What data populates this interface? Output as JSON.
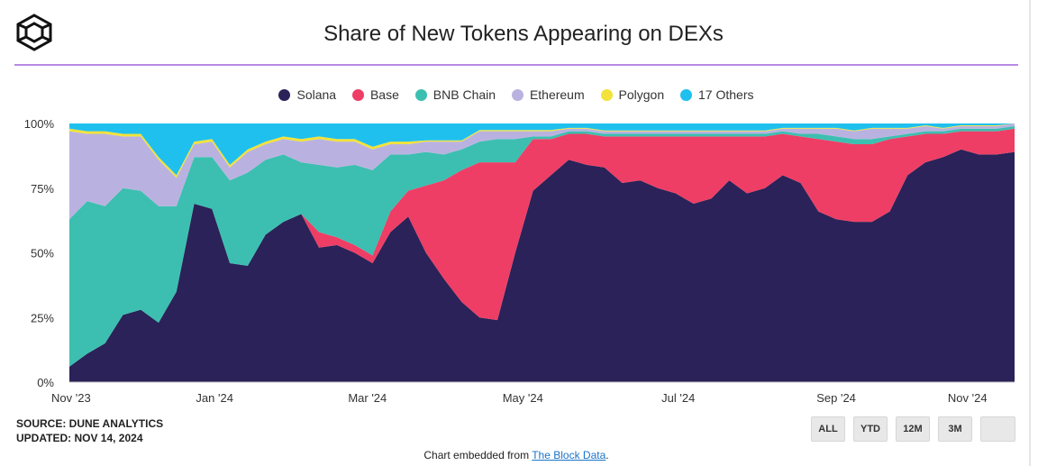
{
  "header": {
    "title": "Share of New Tokens Appearing on DEXs"
  },
  "legend": [
    {
      "label": "Solana",
      "color": "#2a2258"
    },
    {
      "label": "Base",
      "color": "#ee3e65"
    },
    {
      "label": "BNB Chain",
      "color": "#3cbfb0"
    },
    {
      "label": "Ethereum",
      "color": "#b9b2e0"
    },
    {
      "label": "Polygon",
      "color": "#f2e23a"
    },
    {
      "label": "17 Others",
      "color": "#1fc0ee"
    }
  ],
  "footer": {
    "source": "SOURCE: DUNE ANALYTICS",
    "updated": "UPDATED: NOV 14, 2024",
    "embed_prefix": "Chart embedded from ",
    "embed_link": "The Block Data",
    "embed_suffix": "."
  },
  "range_buttons": [
    "ALL",
    "YTD",
    "12M",
    "3M",
    ""
  ],
  "chart_data": {
    "type": "area",
    "stacked": true,
    "y_unit": "%",
    "ylim": [
      0,
      100
    ],
    "y_ticks": [
      "0%",
      "25%",
      "50%",
      "75%",
      "100%"
    ],
    "x_ticks": [
      "Nov '23",
      "Jan '24",
      "Mar '24",
      "May '24",
      "Jul '24",
      "Sep '24",
      "Nov '24"
    ],
    "x": [
      "2023-11-05",
      "2023-11-12",
      "2023-11-19",
      "2023-11-26",
      "2023-12-03",
      "2023-12-10",
      "2023-12-17",
      "2023-12-24",
      "2023-12-31",
      "2024-01-07",
      "2024-01-14",
      "2024-01-21",
      "2024-01-28",
      "2024-02-04",
      "2024-02-11",
      "2024-02-18",
      "2024-02-25",
      "2024-03-03",
      "2024-03-10",
      "2024-03-17",
      "2024-03-24",
      "2024-03-31",
      "2024-04-07",
      "2024-04-14",
      "2024-04-21",
      "2024-04-28",
      "2024-05-05",
      "2024-05-12",
      "2024-05-19",
      "2024-05-26",
      "2024-06-02",
      "2024-06-09",
      "2024-06-16",
      "2024-06-23",
      "2024-06-30",
      "2024-07-07",
      "2024-07-14",
      "2024-07-21",
      "2024-07-28",
      "2024-08-04",
      "2024-08-11",
      "2024-08-18",
      "2024-08-25",
      "2024-09-01",
      "2024-09-08",
      "2024-09-15",
      "2024-09-22",
      "2024-09-29",
      "2024-10-06",
      "2024-10-13",
      "2024-10-20",
      "2024-10-27",
      "2024-11-03",
      "2024-11-10"
    ],
    "series": [
      {
        "name": "Solana",
        "values": [
          6,
          11,
          15,
          26,
          28,
          23,
          35,
          69,
          67,
          46,
          45,
          57,
          62,
          65,
          52,
          53,
          50,
          46,
          58,
          64,
          50,
          40,
          31,
          25,
          24,
          50,
          74,
          80,
          86,
          84,
          83,
          77,
          78,
          75,
          73,
          69,
          71,
          78,
          73,
          75,
          80,
          77,
          66,
          63,
          62,
          62,
          66,
          80,
          85,
          87,
          90,
          88,
          88,
          89
        ]
      },
      {
        "name": "Base",
        "values": [
          0,
          0,
          0,
          0,
          0,
          0,
          0,
          0,
          0,
          0,
          0,
          0,
          0,
          0,
          6,
          3,
          3,
          3,
          8,
          10,
          26,
          38,
          51,
          60,
          61,
          35,
          20,
          14,
          10,
          12,
          12,
          18,
          17,
          20,
          22,
          26,
          24,
          17,
          22,
          20,
          16,
          18,
          28,
          30,
          30,
          30,
          28,
          15,
          11,
          9,
          7,
          9,
          9,
          9
        ]
      },
      {
        "name": "BNB Chain",
        "values": [
          57,
          59,
          53,
          49,
          46,
          45,
          33,
          18,
          20,
          32,
          36,
          29,
          26,
          20,
          26,
          27,
          31,
          33,
          22,
          14,
          13,
          10,
          8,
          8,
          9,
          9,
          1,
          1,
          1,
          1,
          1,
          1,
          1,
          1,
          1,
          1,
          1,
          1,
          1,
          1,
          1,
          1,
          2,
          2,
          2,
          2,
          1,
          1,
          1,
          1,
          1,
          1,
          1,
          1
        ]
      },
      {
        "name": "Ethereum",
        "values": [
          34,
          26,
          28,
          20,
          21,
          18,
          11,
          5,
          6,
          5,
          8,
          6,
          6,
          8,
          10,
          10,
          9,
          8,
          4,
          4,
          4,
          5,
          3,
          4,
          3,
          3,
          2,
          2,
          1,
          1,
          1,
          1,
          1,
          1,
          1,
          1,
          1,
          1,
          1,
          1,
          1,
          2,
          2,
          3,
          3,
          4,
          3,
          2,
          2,
          1,
          1,
          1,
          1,
          1
        ]
      },
      {
        "name": "Polygon",
        "values": [
          1,
          1,
          1,
          1,
          1,
          1,
          1,
          1,
          1,
          1,
          1,
          1,
          1,
          1,
          1,
          1,
          1,
          1,
          1,
          1,
          0.5,
          0.5,
          0.5,
          0.5,
          0.5,
          0.5,
          0.5,
          0.5,
          0.3,
          0.3,
          0.3,
          0.3,
          0.3,
          0.3,
          0.3,
          0.3,
          0.3,
          0.3,
          0.3,
          0.3,
          0.3,
          0.3,
          0.3,
          0.3,
          0.3,
          0.3,
          0.3,
          0.3,
          0.3,
          0.3,
          0.3,
          0.3,
          0.3,
          0.3
        ]
      },
      {
        "name": "17 Others",
        "values": [
          2,
          3,
          3,
          4,
          4,
          13,
          20,
          7,
          6,
          16,
          10,
          7,
          5,
          6,
          5,
          6,
          6,
          9,
          7,
          7,
          6.5,
          6.5,
          6.5,
          2.5,
          2.5,
          2.5,
          2.5,
          2.5,
          1.7,
          1.7,
          2.7,
          2.7,
          2.7,
          2.7,
          2.7,
          2.7,
          2.7,
          2.7,
          2.7,
          2.7,
          1.7,
          1.7,
          1.7,
          1.7,
          2.7,
          1.7,
          1.7,
          1.7,
          0.7,
          1.7,
          0.7,
          0.7,
          0.7,
          0.7
        ]
      }
    ]
  }
}
